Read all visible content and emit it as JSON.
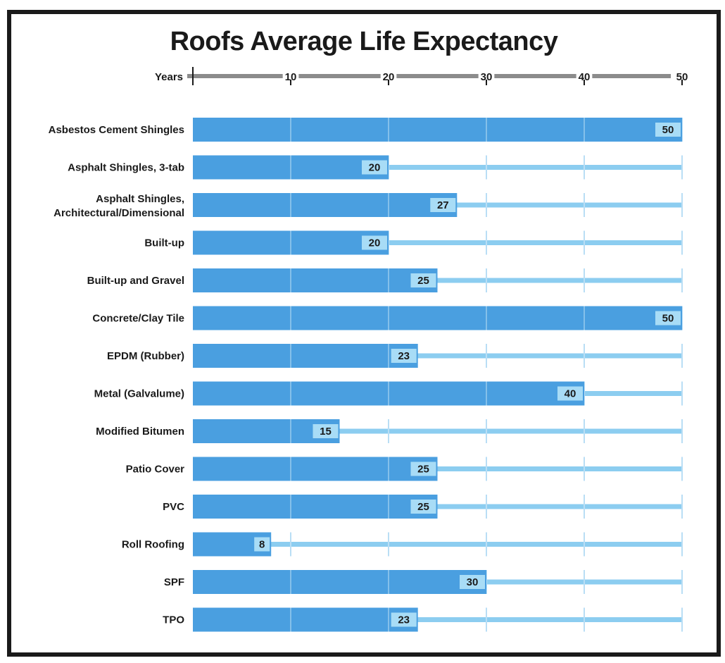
{
  "chart_data": {
    "type": "bar",
    "orientation": "horizontal",
    "title": "Roofs Average Life Expectancy",
    "axis_label": "Years",
    "xlim": [
      0,
      50
    ],
    "ticks": [
      10,
      20,
      30,
      40,
      50
    ],
    "axis_position": "top",
    "grid": true,
    "categories": [
      [
        "Asbestos Cement Shingles"
      ],
      [
        "Asphalt Shingles, 3-tab"
      ],
      [
        "Asphalt Shingles,",
        "Architectural/Dimensional"
      ],
      [
        "Built-up"
      ],
      [
        "Built-up and Gravel"
      ],
      [
        "Concrete/Clay Tile"
      ],
      [
        "EPDM (Rubber)"
      ],
      [
        "Metal (Galvalume)"
      ],
      [
        "Modified Bitumen"
      ],
      [
        "Patio Cover"
      ],
      [
        "PVC"
      ],
      [
        "Roll Roofing"
      ],
      [
        "SPF"
      ],
      [
        "TPO"
      ]
    ],
    "values": [
      50,
      20,
      27,
      20,
      25,
      50,
      23,
      40,
      15,
      25,
      25,
      8,
      30,
      23
    ],
    "colors": {
      "bar": "#4a9fe0",
      "track": "#8ccdf0",
      "label_box": "#a8dcf6",
      "axis": "#8c8c8c",
      "gridline": "#b9def5",
      "text": "#1a1a1a"
    }
  }
}
